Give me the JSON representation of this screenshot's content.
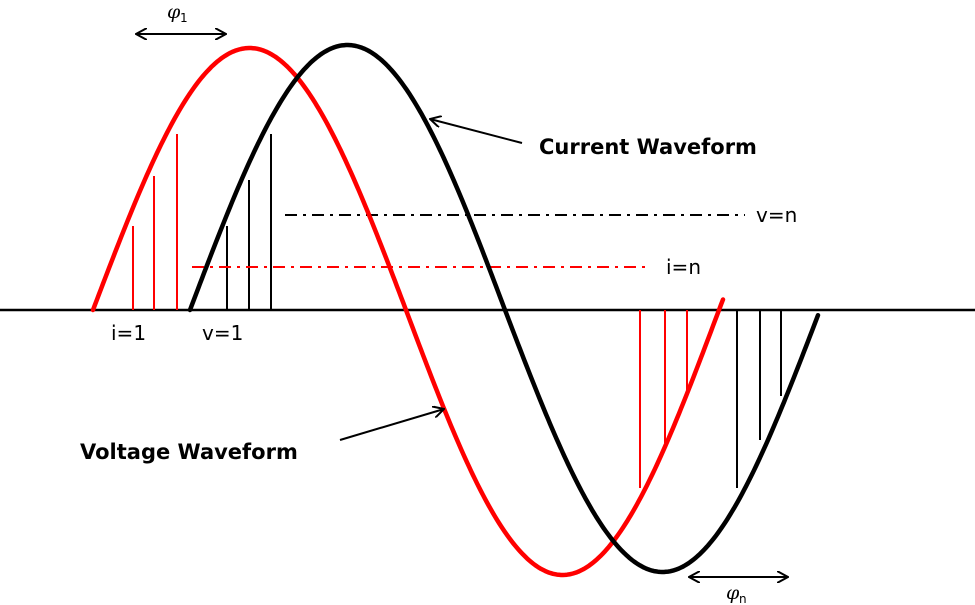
{
  "colors": {
    "voltage": "#ff0000",
    "current": "#000000",
    "axis": "#000000"
  },
  "labels": {
    "current_waveform": "Current Waveform",
    "voltage_waveform": "Voltage Waveform",
    "v_n": "v=n",
    "i_n": "i=n",
    "i_1": "i=1",
    "v_1": "v=1",
    "phi_1_symbol": "φ",
    "phi_1_sub": "1",
    "phi_n_symbol": "φ",
    "phi_n_sub": "n"
  }
}
